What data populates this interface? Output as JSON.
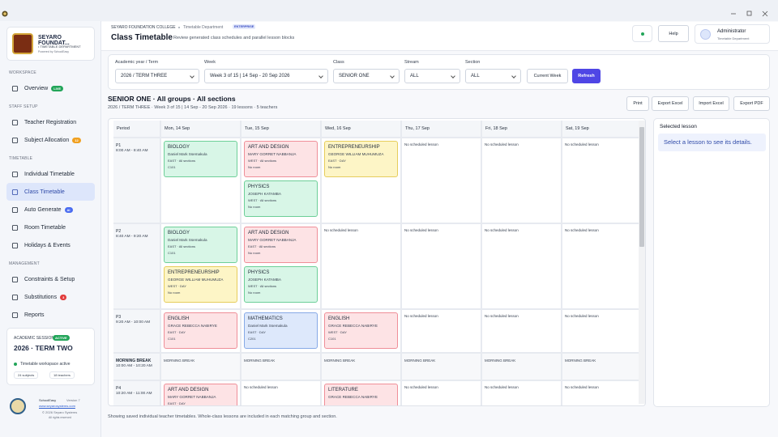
{
  "sidebar": {
    "brand": {
      "name": "SEYARO FOUNDAT...",
      "department": "• TIMETABLE DEPARTMENT",
      "powered": "Powered by SchoolEasy"
    },
    "sections": [
      {
        "title": "WORKSPACE",
        "items": [
          {
            "label": "Overview",
            "badge": "LIVE",
            "badge_color": "#22a559"
          }
        ]
      },
      {
        "title": "STAFF SETUP",
        "items": [
          {
            "label": "Teacher Registration"
          },
          {
            "label": "Subject Allocation",
            "badge": "12",
            "badge_color": "#f0a020"
          }
        ]
      },
      {
        "title": "TIMETABLE",
        "items": [
          {
            "label": "Individual Timetable"
          },
          {
            "label": "Class Timetable",
            "active": true
          },
          {
            "label": "Auto Generate",
            "badge": "AI",
            "badge_color": "#4a6cf0"
          },
          {
            "label": "Room Timetable"
          },
          {
            "label": "Holidays & Events"
          }
        ]
      },
      {
        "title": "MANAGEMENT",
        "items": [
          {
            "label": "Constraints & Setup"
          },
          {
            "label": "Substitutions",
            "badge": "3",
            "badge_color": "#e23b3b"
          },
          {
            "label": "Reports"
          }
        ]
      }
    ],
    "session": {
      "label": "ACADEMIC SESSION",
      "status": "ACTIVE",
      "term": "2026 · TERM TWO",
      "note": "Timetable workspace active",
      "subjects": "24 subjects",
      "teachers": "18 teachers"
    },
    "footer": {
      "product": "SchoolEasy",
      "version": "Version 7",
      "url": "www.seyarosystems.com",
      "copyright": "© 2026 Seyaro Systems",
      "rights": "All rights reserved"
    }
  },
  "header": {
    "breadcrumb": [
      "SEYARO FOUNDATION COLLEGE",
      "Timetable Department"
    ],
    "tier": "ENTERPRISE",
    "title": "Class Timetable",
    "subtitle": "Review generated class schedules and parallel lesson blocks",
    "help": "Help",
    "user": {
      "name": "Administrator",
      "role": "Timetable Department"
    }
  },
  "filters": [
    {
      "label": "Academic year / Term",
      "value": "2026 / TERM THREE"
    },
    {
      "label": "Week",
      "value": "Week 3 of 15 | 14 Sep - 20 Sep 2026"
    },
    {
      "label": "Class",
      "value": "SENIOR ONE"
    },
    {
      "label": "Stream",
      "value": "ALL"
    },
    {
      "label": "Section",
      "value": "ALL"
    }
  ],
  "filter_buttons": [
    "Current Week",
    "Refresh"
  ],
  "timetable": {
    "heading": "SENIOR ONE · All groups · All sections",
    "meta": "2026 / TERM THREE · Week 3 of 15 | 14 Sep - 20 Sep 2026 · 19 lessons · 5 teachers",
    "actions": [
      "Print",
      "Export Excel",
      "Import Excel",
      "Export PDF"
    ],
    "columns": [
      "Period",
      "Mon, 14 Sep",
      "Tue, 15 Sep",
      "Wed, 16 Sep",
      "Thu, 17 Sep",
      "Fri, 18 Sep",
      "Sat, 19 Sep"
    ],
    "empty": "No scheduled lesson",
    "rows": [
      {
        "period": "P1",
        "time": "8:00 AM - 8:40 AM",
        "cells": [
          [
            {
              "subject": "BIOLOGY",
              "teacher": "Daniel Mark Ssemakula",
              "group": "EAST · All sections",
              "room": "C101",
              "color": "green"
            }
          ],
          [
            {
              "subject": "ART AND DESIGN",
              "teacher": "MARY GORRET NABBANJA",
              "group": "WEST · All sections",
              "room": "No room",
              "color": "pink"
            },
            {
              "subject": "PHYSICS",
              "teacher": "JOSEPH KATAMBA",
              "group": "WEST · All sections",
              "room": "No room",
              "color": "green"
            }
          ],
          [
            {
              "subject": "ENTREPRENEURSHIP",
              "teacher": "GEORGE WILLIAM MUHUMUZA",
              "group": "EAST · DAY",
              "room": "No room",
              "color": "yellow"
            }
          ],
          [],
          [],
          []
        ]
      },
      {
        "period": "P2",
        "time": "8:40 AM - 9:20 AM",
        "cells": [
          [
            {
              "subject": "BIOLOGY",
              "teacher": "Daniel Mark Ssemakula",
              "group": "EAST · All sections",
              "room": "C101",
              "color": "green"
            },
            {
              "subject": "ENTREPRENEURSHIP",
              "teacher": "GEORGE WILLIAM MUHUMUZA",
              "group": "WEST · DAY",
              "room": "No room",
              "color": "yellow"
            }
          ],
          [
            {
              "subject": "ART AND DESIGN",
              "teacher": "MARY GORRET NABBANJA",
              "group": "EAST · All sections",
              "room": "No room",
              "color": "pink"
            },
            {
              "subject": "PHYSICS",
              "teacher": "JOSEPH KATAMBA",
              "group": "WEST · All sections",
              "room": "No room",
              "color": "green"
            }
          ],
          [],
          [],
          [],
          []
        ]
      },
      {
        "period": "P3",
        "time": "9:20 AM - 10:00 AM",
        "cells": [
          [
            {
              "subject": "ENGLISH",
              "teacher": "GRACE REBECCA NABIRYE",
              "group": "EAST · DAY",
              "room": "C101",
              "color": "pink"
            }
          ],
          [
            {
              "subject": "MATHEMATICS",
              "teacher": "Daniel Mark Ssemakula",
              "group": "EAST · DAY",
              "room": "C201",
              "color": "blue"
            }
          ],
          [
            {
              "subject": "ENGLISH",
              "teacher": "GRACE REBECCA NABIRYE",
              "group": "WEST · DAY",
              "room": "C101",
              "color": "pink"
            }
          ],
          [],
          [],
          []
        ]
      },
      {
        "period": "MORNING BREAK",
        "time": "10:00 AM - 10:20 AM",
        "break": true
      },
      {
        "period": "P4",
        "time": "10:20 AM - 11:00 AM",
        "cells": [
          [
            {
              "subject": "ART AND DESIGN",
              "teacher": "MARY GORRET NABBANJA",
              "group": "EAST · DAY",
              "color": "pink"
            }
          ],
          [],
          [
            {
              "subject": "LITERATURE",
              "teacher": "GRACE REBECCA NABIRYE",
              "color": "pink"
            }
          ],
          [],
          [],
          []
        ]
      }
    ]
  },
  "details": {
    "title": "Selected lesson",
    "hint": "Select a lesson to see its details."
  },
  "note": "Showing saved individual teacher timetables. Whole-class lessons are included in each matching group and section."
}
